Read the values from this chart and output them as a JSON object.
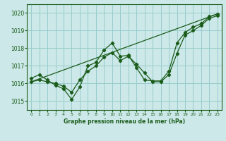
{
  "title": "Graphe pression niveau de la mer (hPa)",
  "bg_color": "#cce8e8",
  "grid_color": "#99cccc",
  "line_color": "#1a5c1a",
  "xlim": [
    -0.5,
    23.5
  ],
  "ylim": [
    1014.5,
    1020.5
  ],
  "xticks": [
    0,
    1,
    2,
    3,
    4,
    5,
    6,
    7,
    8,
    9,
    10,
    11,
    12,
    13,
    14,
    15,
    16,
    17,
    18,
    19,
    20,
    21,
    22,
    23
  ],
  "yticks": [
    1015,
    1016,
    1017,
    1018,
    1019,
    1020
  ],
  "line1_x": [
    0,
    1,
    2,
    3,
    4,
    5,
    6,
    7,
    8,
    9,
    10,
    11,
    12,
    13,
    14,
    15,
    16,
    17,
    18,
    19,
    20,
    21,
    22,
    23
  ],
  "line1": [
    1016.3,
    1016.5,
    1016.2,
    1015.9,
    1015.7,
    1015.1,
    1015.8,
    1017.0,
    1017.2,
    1017.9,
    1018.3,
    1017.55,
    1017.6,
    1016.9,
    1016.2,
    1016.15,
    1016.15,
    1016.7,
    1018.3,
    1018.9,
    1019.2,
    1019.4,
    1019.8,
    1019.95
  ],
  "line2_x": [
    0,
    1,
    2,
    3,
    4,
    5,
    6,
    7,
    8,
    9,
    10,
    11,
    12,
    13,
    14,
    15,
    16,
    17,
    18,
    19,
    20,
    21,
    22,
    23
  ],
  "line2": [
    1016.1,
    1016.2,
    1016.1,
    1016.0,
    1015.85,
    1015.5,
    1016.2,
    1016.7,
    1017.0,
    1017.5,
    1017.75,
    1017.3,
    1017.55,
    1017.1,
    1016.6,
    1016.1,
    1016.1,
    1016.5,
    1017.7,
    1018.75,
    1019.0,
    1019.3,
    1019.7,
    1019.85
  ],
  "line3_x": [
    0,
    23
  ],
  "line3": [
    1016.1,
    1019.95
  ]
}
